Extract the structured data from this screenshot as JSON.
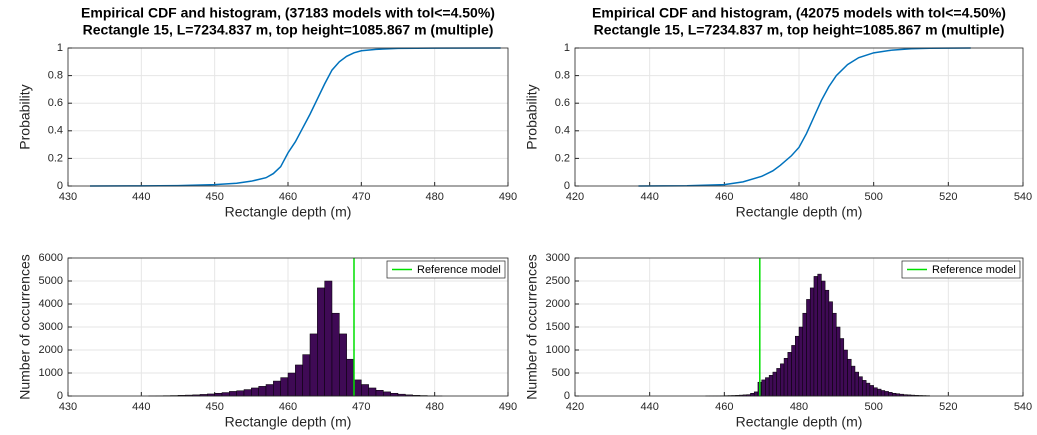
{
  "chart_data": [
    {
      "type": "line",
      "title": "Empirical CDF and histogram, (37183 models with tol<=4.50%)",
      "subtitle": "Rectangle 15, L=7234.837 m, top height=1085.867 m (multiple)",
      "xlabel": "Rectangle depth (m)",
      "ylabel": "Probability",
      "x": [
        433,
        440,
        445,
        450,
        453,
        455,
        457,
        458,
        459,
        460,
        461,
        462,
        463,
        464,
        465,
        466,
        467,
        468,
        469,
        470,
        472,
        475,
        480,
        489
      ],
      "values": [
        0,
        0.001,
        0.003,
        0.01,
        0.02,
        0.035,
        0.06,
        0.09,
        0.14,
        0.24,
        0.32,
        0.42,
        0.52,
        0.63,
        0.74,
        0.84,
        0.9,
        0.94,
        0.965,
        0.98,
        0.99,
        0.997,
        0.999,
        1
      ],
      "color": "#0072bd",
      "xlim": [
        430,
        490
      ],
      "xticks": [
        430,
        440,
        450,
        460,
        470,
        480,
        490
      ],
      "ylim": [
        0,
        1
      ],
      "yticks": [
        0,
        0.2,
        0.4,
        0.6,
        0.8,
        1
      ],
      "grid": true
    },
    {
      "type": "line",
      "title": "Empirical CDF and histogram, (42075 models with tol<=4.50%)",
      "subtitle": "Rectangle 15, L=7234.837 m, top height=1085.867 m (multiple)",
      "xlabel": "Rectangle depth (m)",
      "ylabel": "Probability",
      "x": [
        437,
        450,
        460,
        465,
        470,
        473,
        475,
        478,
        480,
        482,
        484,
        486,
        488,
        490,
        493,
        496,
        500,
        505,
        510,
        515,
        526
      ],
      "values": [
        0,
        0.002,
        0.01,
        0.03,
        0.07,
        0.11,
        0.15,
        0.22,
        0.28,
        0.38,
        0.5,
        0.62,
        0.72,
        0.8,
        0.88,
        0.93,
        0.965,
        0.985,
        0.995,
        0.998,
        1
      ],
      "color": "#0072bd",
      "xlim": [
        420,
        540
      ],
      "xticks": [
        420,
        440,
        460,
        480,
        500,
        520,
        540
      ],
      "ylim": [
        0,
        1
      ],
      "yticks": [
        0,
        0.2,
        0.4,
        0.6,
        0.8,
        1
      ],
      "grid": true
    },
    {
      "type": "histogram",
      "xlabel": "Rectangle depth (m)",
      "ylabel": "Number of occurrences",
      "bins": [
        441,
        442,
        443,
        444,
        445,
        446,
        447,
        448,
        449,
        450,
        451,
        452,
        453,
        454,
        455,
        456,
        457,
        458,
        459,
        460,
        461,
        462,
        463,
        464,
        465,
        466,
        467,
        468,
        469,
        470,
        471,
        472,
        473,
        474,
        475,
        476,
        477,
        478,
        479,
        480,
        481
      ],
      "values": [
        5,
        10,
        15,
        20,
        30,
        40,
        50,
        70,
        90,
        120,
        150,
        200,
        230,
        280,
        350,
        420,
        500,
        650,
        800,
        1000,
        1350,
        1800,
        2700,
        4700,
        5000,
        3600,
        2700,
        1600,
        700,
        500,
        350,
        250,
        180,
        120,
        80,
        50,
        30,
        20,
        10,
        5
      ],
      "color": "#3f0a55",
      "reference_line": {
        "name": "Reference model",
        "x": 469,
        "color": "#00e000"
      },
      "legend": "upper right",
      "xlim": [
        430,
        490
      ],
      "xticks": [
        430,
        440,
        450,
        460,
        470,
        480,
        490
      ],
      "ylim": [
        0,
        6000
      ],
      "yticks": [
        0,
        1000,
        2000,
        3000,
        4000,
        5000,
        6000
      ],
      "grid": true
    },
    {
      "type": "histogram",
      "xlabel": "Rectangle depth (m)",
      "ylabel": "Number of occurrences",
      "bins": [
        455,
        456,
        457,
        458,
        459,
        460,
        461,
        462,
        463,
        464,
        465,
        466,
        467,
        468,
        469,
        470,
        471,
        472,
        473,
        474,
        475,
        476,
        477,
        478,
        479,
        480,
        481,
        482,
        483,
        484,
        485,
        486,
        487,
        488,
        489,
        490,
        491,
        492,
        493,
        494,
        495,
        496,
        497,
        498,
        499,
        500,
        501,
        502,
        503,
        504,
        505,
        506,
        507,
        508,
        509,
        510,
        511,
        512,
        513,
        514,
        515
      ],
      "values": [
        2,
        3,
        4,
        5,
        6,
        8,
        10,
        12,
        15,
        20,
        25,
        30,
        60,
        90,
        300,
        350,
        400,
        450,
        520,
        600,
        700,
        820,
        950,
        1100,
        1300,
        1500,
        1800,
        2100,
        2350,
        2600,
        2650,
        2500,
        2300,
        2050,
        1800,
        1500,
        1250,
        1000,
        800,
        650,
        520,
        420,
        340,
        280,
        230,
        180,
        150,
        120,
        100,
        80,
        60,
        50,
        40,
        30,
        25,
        20,
        15,
        12,
        10,
        8
      ],
      "color": "#3f0a55",
      "reference_line": {
        "name": "Reference model",
        "x": 469.5,
        "color": "#00e000"
      },
      "legend": "upper right",
      "xlim": [
        420,
        540
      ],
      "xticks": [
        420,
        440,
        460,
        480,
        500,
        520,
        540
      ],
      "ylim": [
        0,
        3000
      ],
      "yticks": [
        0,
        500,
        1000,
        1500,
        2000,
        2500,
        3000
      ],
      "grid": true
    }
  ]
}
